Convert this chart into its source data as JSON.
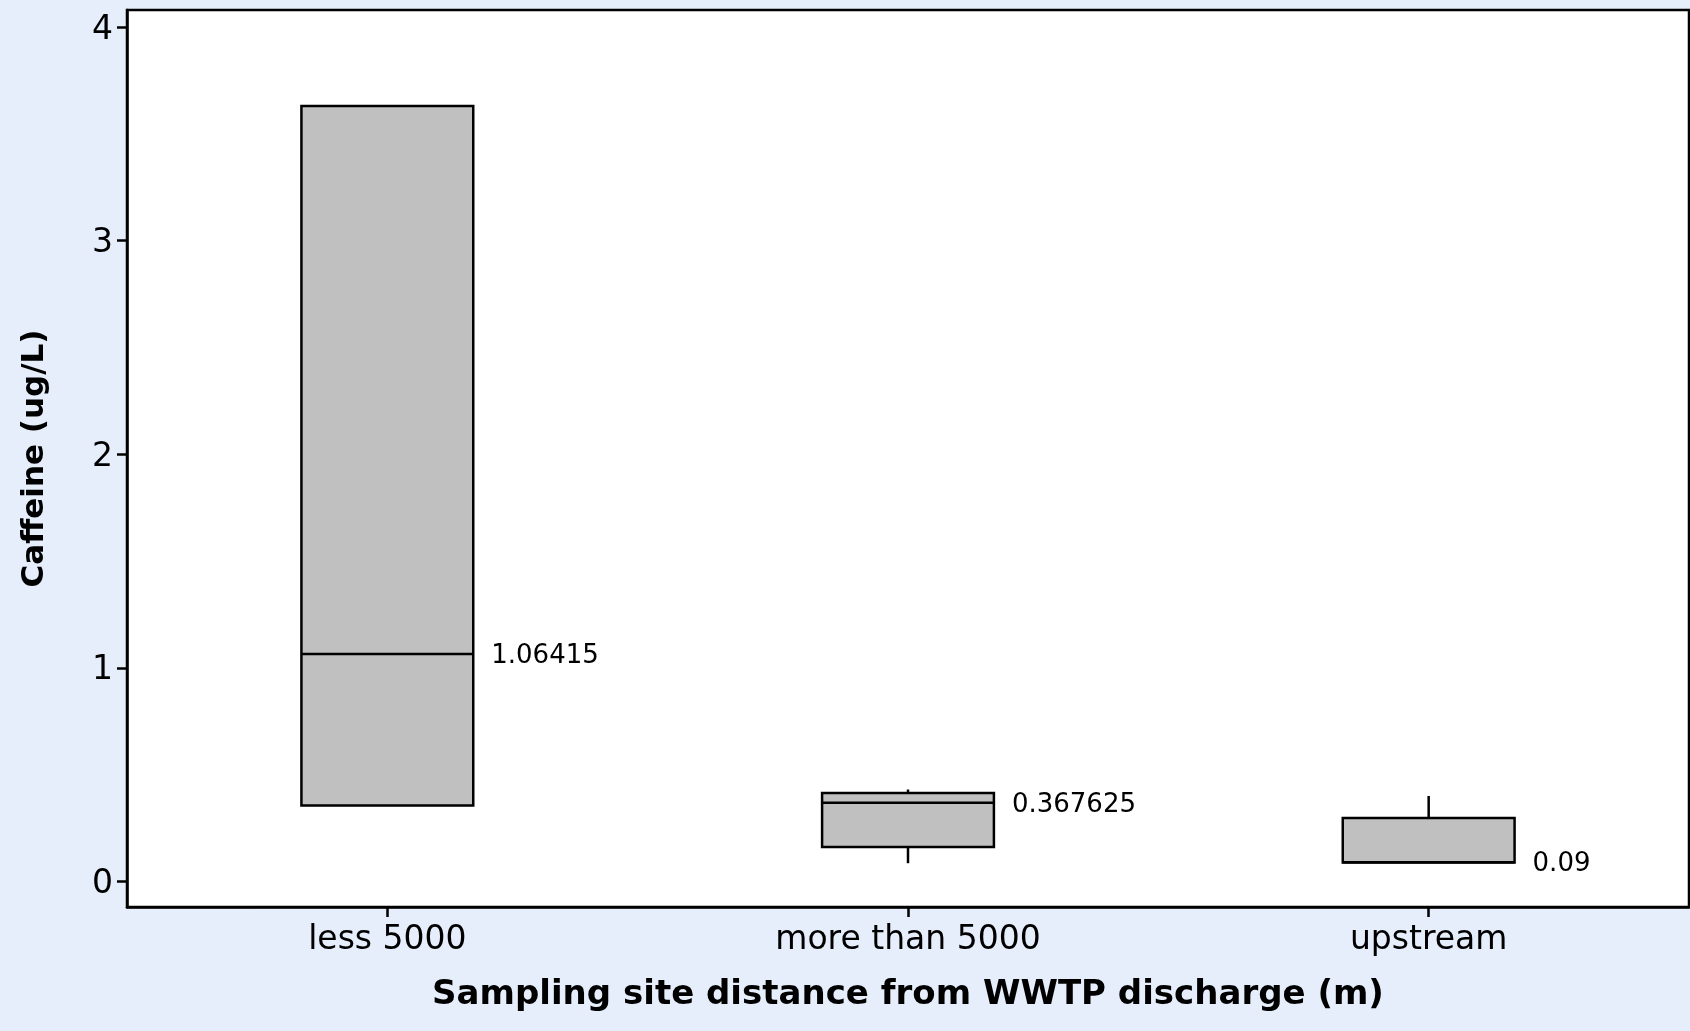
{
  "chart_data": {
    "type": "box",
    "xlabel": "Sampling site distance from WWTP discharge (m)",
    "ylabel": "Caffeine (ug/L)",
    "categories": [
      "less 5000",
      "more than 5000",
      "upstream"
    ],
    "color": "#c0c0c0",
    "boxes": [
      {
        "low": 0.355,
        "q1": 0.355,
        "median": 1.06415,
        "q3": 3.63,
        "high": 3.63
      },
      {
        "low": 0.085,
        "q1": 0.161,
        "median": 0.367625,
        "q3": 0.414,
        "high": 0.43
      },
      {
        "low": 0.088,
        "q1": 0.088,
        "median": 0.09,
        "q3": 0.297,
        "high": 0.4
      }
    ],
    "annotations": [
      "1.06415",
      "0.367625",
      "0.09"
    ],
    "ylim": [
      -0.12,
      4.08
    ],
    "yticks": [
      0,
      1,
      2,
      3,
      4
    ],
    "grid": false
  }
}
